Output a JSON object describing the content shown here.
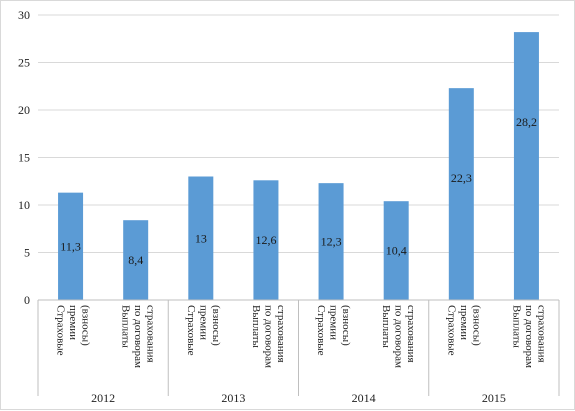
{
  "chart_data": {
    "type": "bar",
    "title": "",
    "xlabel": "",
    "ylabel": "",
    "ylim": [
      0,
      30
    ],
    "yticks": [
      0,
      5,
      10,
      15,
      20,
      25,
      30
    ],
    "grid": true,
    "legend": "none",
    "bar_color": "#5b9bd5",
    "groups": [
      {
        "year": "2012",
        "categories": [
          "Страховые премии (взносы)",
          "Выплаты по договорам страхования"
        ],
        "values": [
          11.3,
          8.4
        ],
        "labels": [
          "11,3",
          "8,4"
        ]
      },
      {
        "year": "2013",
        "categories": [
          "Страховые премии (взносы)",
          "Выплаты по договорам страхования"
        ],
        "values": [
          13,
          12.6
        ],
        "labels": [
          "13",
          "12,6"
        ]
      },
      {
        "year": "2014",
        "categories": [
          "Страховые премии (взносы)",
          "Выплаты по договорам страхования"
        ],
        "values": [
          12.3,
          10.4
        ],
        "labels": [
          "12,3",
          "10,4"
        ]
      },
      {
        "year": "2015",
        "categories": [
          "Страховые премии (взносы)",
          "Выплаты по договорам страхования"
        ],
        "values": [
          22.3,
          28.2
        ],
        "labels": [
          "22,3",
          "28,2"
        ]
      }
    ],
    "category_lines": {
      "Страховые премии (взносы)": [
        "Страховые",
        "премии",
        "(взносы)"
      ],
      "Выплаты по договорам страхования": [
        "Выплаты",
        "по договорам",
        "страхования"
      ]
    }
  }
}
